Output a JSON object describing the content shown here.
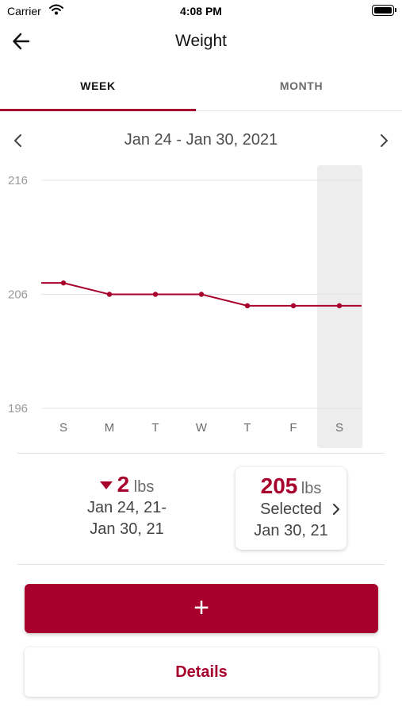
{
  "status_bar": {
    "carrier": "Carrier",
    "time": "4:08 PM"
  },
  "nav": {
    "title": "Weight",
    "back_icon": "arrow-left-icon"
  },
  "tabs": [
    {
      "label": "WEEK",
      "selected": true
    },
    {
      "label": "MONTH",
      "selected": false
    }
  ],
  "date_nav": {
    "range": "Jan 24 - Jan 30, 2021",
    "prev_icon": "chevron-left-icon",
    "next_icon": "chevron-right-icon"
  },
  "chart_data": {
    "type": "line",
    "categories": [
      "S",
      "M",
      "T",
      "W",
      "T",
      "F",
      "S"
    ],
    "values": [
      207,
      206,
      206,
      206,
      205,
      205,
      205
    ],
    "y_ticks": [
      "216",
      "206",
      "196"
    ],
    "ylim": [
      196,
      216
    ],
    "selected_index": 6,
    "grid": true,
    "line_color": "#a8002c"
  },
  "summary": {
    "change_value": "2",
    "change_unit": "lbs",
    "change_direction": "down",
    "change_range_line1": "Jan 24, 21-",
    "change_range_line2": "Jan 30, 21",
    "selected_value": "205",
    "selected_unit": "lbs",
    "selected_label": "Selected",
    "selected_date": "Jan 30, 21"
  },
  "actions": {
    "add_label": "+",
    "details_label": "Details"
  },
  "colors": {
    "accent": "#a8002c",
    "text_secondary": "#6b6b6b"
  }
}
